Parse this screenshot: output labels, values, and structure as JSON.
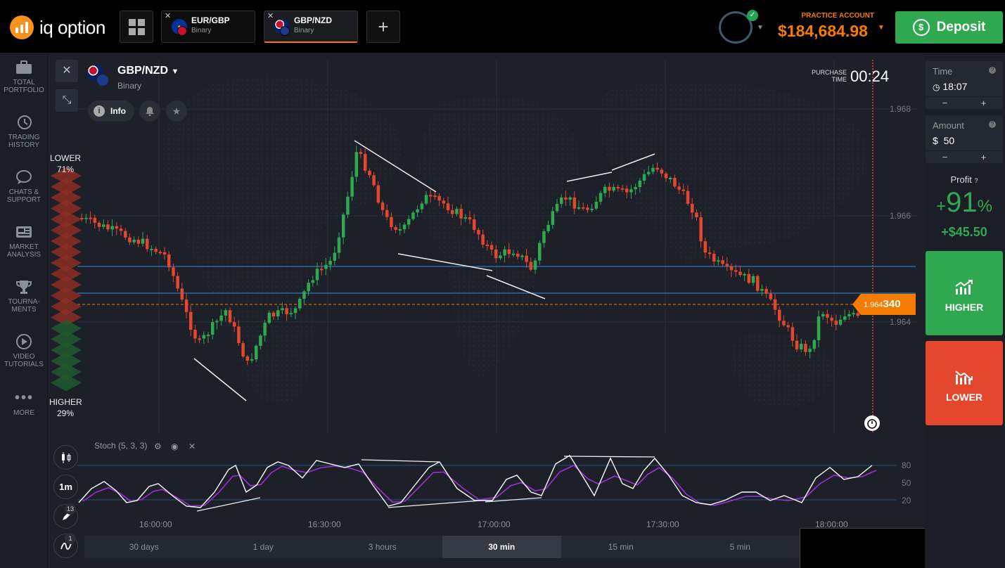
{
  "brand": {
    "name": "iq option"
  },
  "tabs": [
    {
      "name": "EUR/GBP",
      "type": "Binary"
    },
    {
      "name": "GBP/NZD",
      "type": "Binary"
    }
  ],
  "account": {
    "label": "PRACTICE ACCOUNT",
    "balance": "$184,684.98",
    "deposit_label": "Deposit"
  },
  "sidebar": {
    "items": [
      {
        "label1": "TOTAL",
        "label2": "PORTFOLIO",
        "icon": "briefcase-icon"
      },
      {
        "label1": "TRADING",
        "label2": "HISTORY",
        "icon": "history-icon"
      },
      {
        "label1": "CHATS &",
        "label2": "SUPPORT",
        "icon": "chat-icon"
      },
      {
        "label1": "MARKET",
        "label2": "ANALYSIS",
        "icon": "news-icon"
      },
      {
        "label1": "TOURNA-",
        "label2": "MENTS",
        "icon": "trophy-icon"
      },
      {
        "label1": "VIDEO",
        "label2": "TUTORIALS",
        "icon": "play-icon"
      },
      {
        "label1": "MORE",
        "label2": "",
        "icon": "more-icon"
      }
    ]
  },
  "asset": {
    "name": "GBP/NZD",
    "type": "Binary",
    "info_label": "Info"
  },
  "purchase": {
    "label": "PURCHASE TIME",
    "time": "00:24"
  },
  "price_axis": [
    "1.968",
    "1.966",
    "1.964"
  ],
  "current_price": {
    "prefix": "1.964",
    "suffix": "340"
  },
  "sentiment": {
    "lower_label": "LOWER",
    "lower_pct": "71%",
    "higher_label": "HIGHER",
    "higher_pct": "29%"
  },
  "indicator": {
    "name": "Stoch (5, 3, 3)",
    "levels": [
      "80",
      "50",
      "20"
    ]
  },
  "time_axis": [
    "16:00:00",
    "16:30:00",
    "17:00:00",
    "17:30:00",
    "18:00:00"
  ],
  "tools": {
    "interval": "1m",
    "drawings_count": "13",
    "indicators_count": "1"
  },
  "periods": [
    {
      "label": "30 days",
      "active": false
    },
    {
      "label": "1 day",
      "active": false
    },
    {
      "label": "3 hours",
      "active": false
    },
    {
      "label": "30 min",
      "active": true
    },
    {
      "label": "15 min",
      "active": false
    },
    {
      "label": "5 min",
      "active": false
    }
  ],
  "trade": {
    "time_label": "Time",
    "time_value": "18:07",
    "amount_label": "Amount",
    "amount_currency": "$",
    "amount_value": "50",
    "minus": "−",
    "plus": "+",
    "profit_label": "Profit",
    "profit_sign": "+",
    "profit_pct": "91",
    "profit_pct_unit": "%",
    "profit_amount": "+$45.50",
    "higher_label": "HIGHER",
    "lower_label": "LOWER"
  },
  "colors": {
    "accent": "#f57c00",
    "up": "#2fa84f",
    "down": "#e5472e",
    "level_line": "#2a78b8",
    "stoch_k": "#ffffff",
    "stoch_d": "#9b30d0"
  }
}
